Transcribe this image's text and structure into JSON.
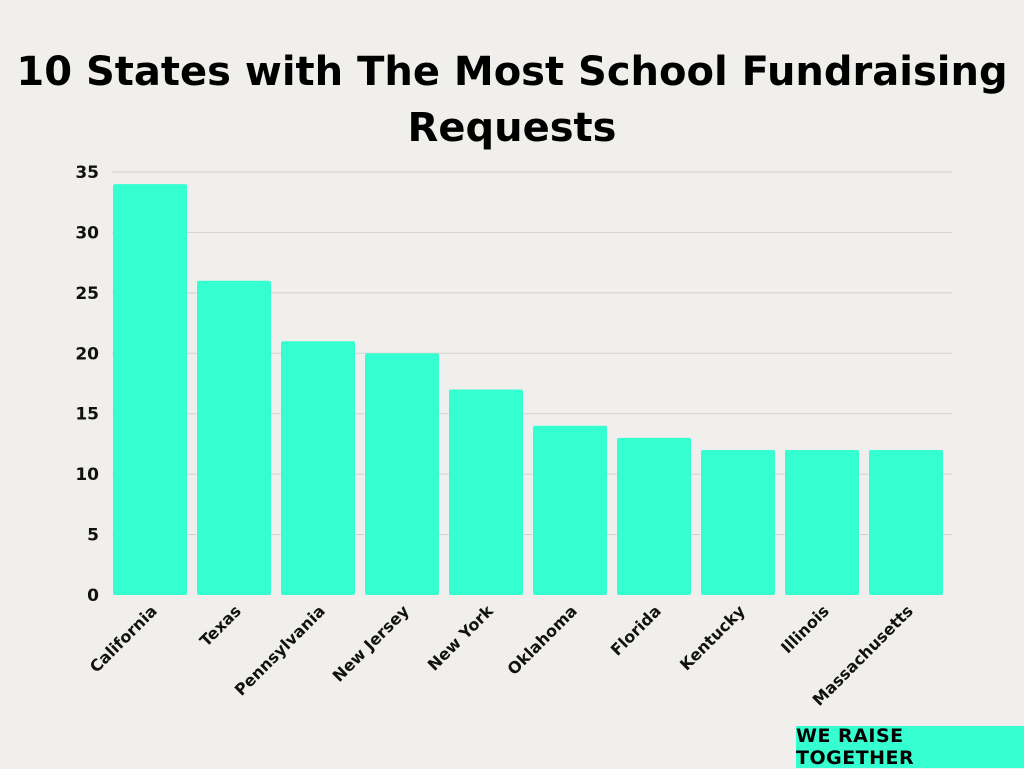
{
  "colors": {
    "background": "#f0efec",
    "bar": "#35ffd0",
    "grid": "#d2d2d0",
    "badge": "#35ffd0"
  },
  "chart_data": {
    "type": "bar",
    "title": "10 States with The Most School Fundraising Requests",
    "xlabel": "",
    "ylabel": "",
    "ylim": [
      0,
      35
    ],
    "yticks": [
      0,
      5,
      10,
      15,
      20,
      25,
      30,
      35
    ],
    "grid": true,
    "categories": [
      "California",
      "Texas",
      "Pennsylvania",
      "New Jersey",
      "New York",
      "Oklahoma",
      "Florida",
      "Kentucky",
      "Illinois",
      "Massachusetts"
    ],
    "values": [
      34,
      26,
      21,
      20,
      17,
      14,
      13,
      12,
      12,
      12
    ]
  },
  "brand": {
    "text": "WE RAISE TOGETHER"
  }
}
